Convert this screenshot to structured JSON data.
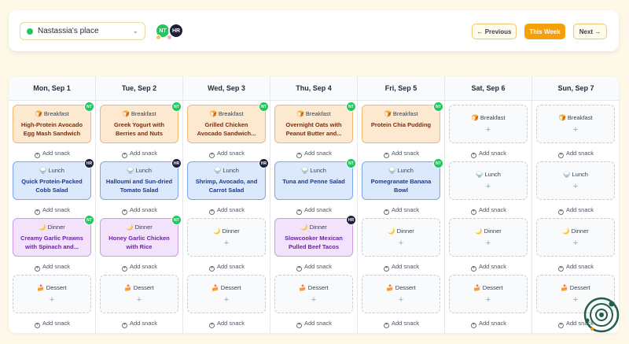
{
  "topbar": {
    "place_name": "Nastassia's place",
    "status_color": "#22c55e",
    "members": [
      {
        "initials": "NT",
        "color": "#22c55e"
      },
      {
        "initials": "HR",
        "color": "#1f1f3a"
      }
    ],
    "prev_label": "← Previous",
    "this_week_label": "This Week",
    "next_label": "Next →"
  },
  "meal_icons": {
    "Breakfast": "🍞",
    "Lunch": "🍚",
    "Dinner": "🌙",
    "Dessert": "🍰"
  },
  "add_snack_label": "Add snack",
  "days": [
    {
      "header": "Mon, Sep 1",
      "meals": [
        {
          "type": "Breakfast",
          "name": "High-Protein Avocado Egg Mash Sandwich",
          "owner": "NT"
        },
        {
          "type": "Lunch",
          "name": "Quick Protein-Packed Cobb Salad",
          "owner": "HR"
        },
        {
          "type": "Dinner",
          "name": "Creamy Garlic Prawns with Spinach and...",
          "owner": "NT"
        },
        {
          "type": "Dessert",
          "name": null,
          "owner": null
        }
      ]
    },
    {
      "header": "Tue, Sep 2",
      "meals": [
        {
          "type": "Breakfast",
          "name": "Greek Yogurt with Berries and Nuts",
          "owner": "NT"
        },
        {
          "type": "Lunch",
          "name": "Halloumi and Sun-dried Tomato Salad",
          "owner": "HR"
        },
        {
          "type": "Dinner",
          "name": "Honey Garlic Chicken with Rice",
          "owner": "NT"
        },
        {
          "type": "Dessert",
          "name": null,
          "owner": null
        }
      ]
    },
    {
      "header": "Wed, Sep 3",
      "meals": [
        {
          "type": "Breakfast",
          "name": "Grilled Chicken Avocado Sandwich...",
          "owner": "NT"
        },
        {
          "type": "Lunch",
          "name": "Shrimp, Avocado, and Carrot Salad",
          "owner": "HR"
        },
        {
          "type": "Dinner",
          "name": null,
          "owner": null
        },
        {
          "type": "Dessert",
          "name": null,
          "owner": null
        }
      ]
    },
    {
      "header": "Thu, Sep 4",
      "meals": [
        {
          "type": "Breakfast",
          "name": "Overnight Oats with Peanut Butter and...",
          "owner": "NT"
        },
        {
          "type": "Lunch",
          "name": "Tuna and Penne Salad",
          "owner": "NT"
        },
        {
          "type": "Dinner",
          "name": "Slowcooker Mexican Pulled Beef Tacos",
          "owner": "HR"
        },
        {
          "type": "Dessert",
          "name": null,
          "owner": null
        }
      ]
    },
    {
      "header": "Fri, Sep 5",
      "meals": [
        {
          "type": "Breakfast",
          "name": "Protein Chia Pudding",
          "owner": "NT"
        },
        {
          "type": "Lunch",
          "name": "Pomegranate Banana Bowl",
          "owner": "NT"
        },
        {
          "type": "Dinner",
          "name": null,
          "owner": null
        },
        {
          "type": "Dessert",
          "name": null,
          "owner": null
        }
      ]
    },
    {
      "header": "Sat, Sep 6",
      "meals": [
        {
          "type": "Breakfast",
          "name": null,
          "owner": null
        },
        {
          "type": "Lunch",
          "name": null,
          "owner": null
        },
        {
          "type": "Dinner",
          "name": null,
          "owner": null
        },
        {
          "type": "Dessert",
          "name": null,
          "owner": null
        }
      ]
    },
    {
      "header": "Sun, Sep 7",
      "meals": [
        {
          "type": "Breakfast",
          "name": null,
          "owner": null
        },
        {
          "type": "Lunch",
          "name": null,
          "owner": null
        },
        {
          "type": "Dinner",
          "name": null,
          "owner": null
        },
        {
          "type": "Dessert",
          "name": null,
          "owner": null
        }
      ]
    }
  ]
}
